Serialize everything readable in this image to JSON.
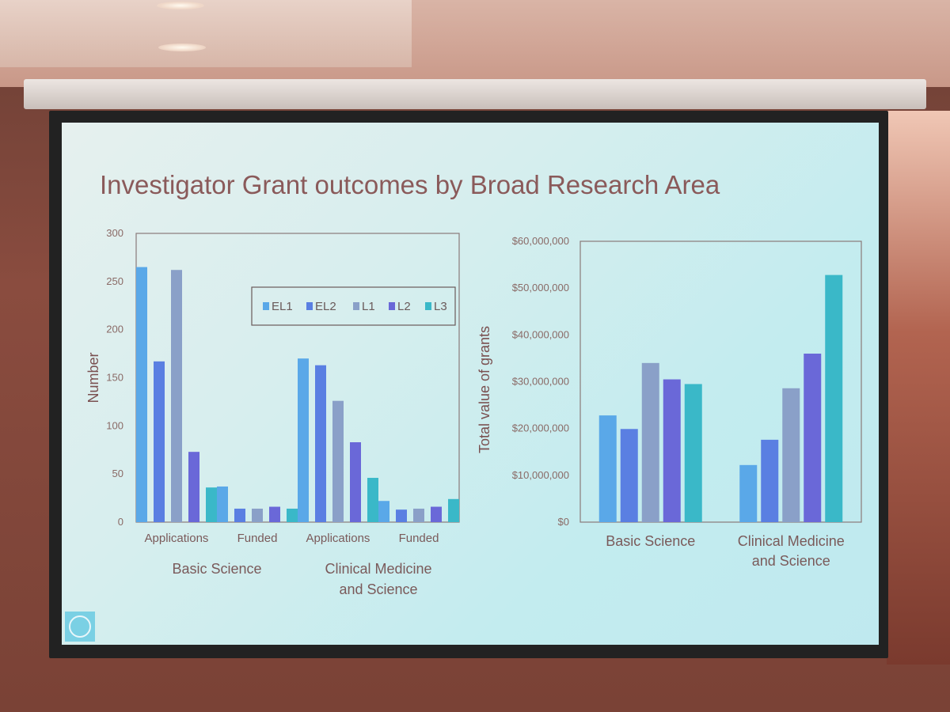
{
  "slide": {
    "title": "Investigator Grant outcomes by Broad Research Area",
    "logo_icon": "nhmrc-logo-icon"
  },
  "colors": {
    "EL1": "#5aa8e8",
    "EL2": "#5a7fe2",
    "L1": "#8aa0c8",
    "L2": "#6a68d8",
    "L3": "#3ab8c8",
    "text": "#7a5a5a",
    "frame": "#8a7a7a"
  },
  "chart_data": [
    {
      "type": "bar",
      "title": "",
      "ylabel": "Number",
      "xlabel": "",
      "ylim": [
        0,
        300
      ],
      "yticks": [
        0,
        50,
        100,
        150,
        200,
        250,
        300
      ],
      "legend": "top-right",
      "series_names": [
        "EL1",
        "EL2",
        "L1",
        "L2",
        "L3"
      ],
      "categories": [
        "Applications",
        "Funded",
        "Applications",
        "Funded"
      ],
      "groups": [
        {
          "label": "Basic Science",
          "categories": [
            "Applications",
            "Funded"
          ]
        },
        {
          "label": "Clinical Medicine\nand Science",
          "categories": [
            "Applications",
            "Funded"
          ]
        }
      ],
      "series": [
        {
          "name": "EL1",
          "values": [
            265,
            37,
            170,
            22
          ]
        },
        {
          "name": "EL2",
          "values": [
            167,
            14,
            163,
            13
          ]
        },
        {
          "name": "L1",
          "values": [
            262,
            14,
            126,
            14
          ]
        },
        {
          "name": "L2",
          "values": [
            73,
            16,
            83,
            16
          ]
        },
        {
          "name": "L3",
          "values": [
            36,
            14,
            46,
            24
          ]
        }
      ]
    },
    {
      "type": "bar",
      "title": "",
      "ylabel": "Total value of grants",
      "xlabel": "",
      "ylim": [
        0,
        60000000
      ],
      "yticks": [
        "$0",
        "$10,000,000",
        "$20,000,000",
        "$30,000,000",
        "$40,000,000",
        "$50,000,000",
        "$60,000,000"
      ],
      "categories": [
        "Basic Science",
        "Clinical Medicine\nand Science"
      ],
      "series": [
        {
          "name": "EL1",
          "values": [
            22800000,
            12200000
          ]
        },
        {
          "name": "EL2",
          "values": [
            19900000,
            17600000
          ]
        },
        {
          "name": "L1",
          "values": [
            34000000,
            28600000
          ]
        },
        {
          "name": "L2",
          "values": [
            30500000,
            36000000
          ]
        },
        {
          "name": "L3",
          "values": [
            29500000,
            52800000
          ]
        }
      ]
    }
  ]
}
